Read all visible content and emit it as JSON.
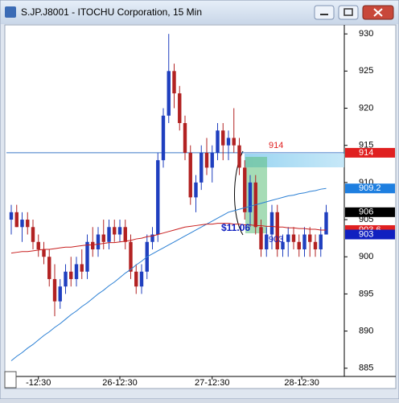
{
  "window": {
    "title": "S.JP.J8001 - ITOCHU Corporation, 15 Min"
  },
  "chart_data": {
    "type": "candlestick",
    "open": [
      905,
      906,
      904,
      905,
      904,
      902,
      901,
      900,
      897,
      894,
      896,
      898,
      897,
      899,
      898,
      902,
      901,
      903,
      902,
      904,
      903,
      904,
      902,
      898,
      896,
      898,
      902,
      903,
      913,
      919,
      925,
      922,
      918,
      914,
      908,
      910,
      914,
      912,
      914,
      917,
      915,
      916,
      915,
      912,
      906,
      910,
      904,
      901,
      903,
      906,
      901,
      902,
      903,
      902,
      901,
      903,
      902,
      901,
      903
    ],
    "high": [
      907,
      907,
      906,
      906,
      905,
      903,
      902,
      901,
      899,
      897,
      899,
      900,
      900,
      901,
      903,
      904,
      904,
      905,
      905,
      905,
      905,
      905,
      903,
      899,
      899,
      903,
      904,
      914,
      920,
      930,
      926,
      923,
      919,
      915,
      911,
      915,
      916,
      915,
      918,
      918,
      917,
      920,
      916,
      913,
      911,
      911,
      905,
      904,
      907,
      907,
      903,
      904,
      904,
      903,
      904,
      904,
      903,
      904,
      907
    ],
    "low": [
      903,
      904,
      902,
      903,
      901,
      900,
      899,
      896,
      892,
      893,
      895,
      896,
      896,
      897,
      897,
      900,
      900,
      901,
      901,
      902,
      902,
      901,
      897,
      895,
      895,
      897,
      901,
      902,
      912,
      918,
      920,
      917,
      913,
      907,
      906,
      909,
      911,
      910,
      913,
      913,
      913,
      914,
      911,
      905,
      904,
      903,
      900,
      900,
      901,
      900,
      900,
      900,
      901,
      900,
      900,
      900,
      900,
      900,
      903
    ],
    "close": [
      906,
      904,
      905,
      904,
      902,
      901,
      900,
      897,
      894,
      896,
      898,
      897,
      899,
      898,
      902,
      901,
      903,
      902,
      904,
      903,
      904,
      902,
      898,
      896,
      898,
      902,
      903,
      913,
      919,
      925,
      922,
      918,
      914,
      908,
      910,
      914,
      912,
      914,
      917,
      915,
      916,
      915,
      912,
      906,
      910,
      904,
      901,
      903,
      906,
      901,
      902,
      903,
      902,
      901,
      903,
      902,
      901,
      903,
      906
    ],
    "up_color": "#1f3fbf",
    "down_color": "#b22222",
    "overlays": [
      {
        "color": "#2a7fd4",
        "values": [
          886,
          886.6,
          887.1,
          887.7,
          888.2,
          888.8,
          889.4,
          889.9,
          890.5,
          891,
          891.6,
          892.2,
          892.7,
          893.3,
          893.8,
          894.4,
          895,
          895.5,
          896.1,
          896.6,
          897.2,
          897.8,
          898.3,
          898.9,
          899.4,
          900,
          900.4,
          900.8,
          901.2,
          901.6,
          902,
          902.4,
          902.8,
          903.2,
          903.6,
          904,
          904.4,
          904.8,
          905.2,
          905.6,
          906,
          906.2,
          906.4,
          906.6,
          906.8,
          907,
          907.2,
          907.4,
          907.6,
          907.8,
          908,
          908.2,
          908.3,
          908.5,
          908.6,
          908.8,
          908.9,
          909.1,
          909.2
        ]
      },
      {
        "color": "#c81e1e",
        "values": [
          900.5,
          900.6,
          900.7,
          900.7,
          900.8,
          900.9,
          901,
          901,
          901.1,
          901.2,
          901.3,
          901.3,
          901.4,
          901.5,
          901.6,
          901.6,
          901.7,
          901.8,
          901.9,
          901.9,
          902,
          902.1,
          902.2,
          902.4,
          902.5,
          902.7,
          902.8,
          903,
          903.2,
          903.4,
          903.6,
          903.8,
          904,
          904.1,
          904.2,
          904.3,
          904.4,
          904.4,
          904.5,
          904.5,
          904.5,
          904.4,
          904.4,
          904.3,
          904.3,
          904.2,
          904.2,
          904.1,
          904.1,
          904,
          904,
          903.9,
          903.9,
          903.8,
          903.8,
          903.7,
          903.7,
          903.6,
          903.6
        ]
      }
    ],
    "horizontal_line": {
      "value": 914,
      "color": "#3a78c8"
    },
    "ylim": [
      884,
      931.1
    ],
    "yticks": [
      885,
      890,
      895,
      900,
      905,
      910,
      915,
      920,
      925,
      930
    ],
    "xticks": [
      {
        "value": 5,
        "label": "-12:30"
      },
      {
        "value": 20,
        "label": "26-12:30"
      },
      {
        "value": 37,
        "label": "27-12:30"
      },
      {
        "value": 53.5,
        "label": "28-12:30"
      }
    ],
    "price_markers": [
      {
        "value": 914,
        "color": "#e02020",
        "text_color": "#ffffff"
      },
      {
        "value": 909.2,
        "color": "#1e7fe0",
        "text_color": "#ffffff"
      },
      {
        "value": 906,
        "color": "#000000",
        "text_color": "#ffffff"
      },
      {
        "value": 903.6,
        "color": "#e02020",
        "text_color": "#ffffff"
      },
      {
        "value": 903,
        "color": "#1020c0",
        "text_color": "#ffffff"
      }
    ],
    "annotations": [
      "914",
      "$11.06",
      "903"
    ]
  }
}
